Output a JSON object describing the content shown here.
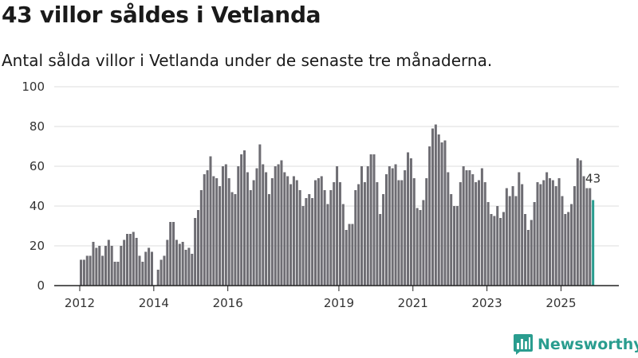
{
  "header": {
    "title": "43 villor såldes i Vetlanda",
    "subtitle": "Antal sålda villor i Vetlanda under de senaste tre månaderna."
  },
  "brand": {
    "name": "Newsworthy"
  },
  "colors": {
    "bar": "#6e6d73",
    "highlight": "#2a9d8f",
    "grid": "#dcdcdc",
    "axis": "#222222"
  },
  "chart_data": {
    "type": "bar",
    "title": "43 villor såldes i Vetlanda",
    "subtitle": "Antal sålda villor i Vetlanda under de senaste tre månaderna.",
    "xlabel": "",
    "ylabel": "",
    "ylim": [
      0,
      100
    ],
    "yticks": [
      0,
      20,
      40,
      60,
      80,
      100
    ],
    "grid": true,
    "start_year": 2012,
    "end_year": 2025,
    "xtick_labels": [
      "2012",
      "2014",
      "2016",
      "2019",
      "2021",
      "2023",
      "2025"
    ],
    "xtick_years": [
      2012,
      2014,
      2016,
      2019,
      2021,
      2023,
      2025
    ],
    "highlight_label": "43",
    "values": [
      13,
      13,
      15,
      15,
      22,
      19,
      20,
      15,
      20,
      23,
      20,
      12,
      12,
      20,
      23,
      26,
      26,
      27,
      24,
      15,
      12,
      17,
      19,
      17,
      null,
      8,
      13,
      15,
      23,
      32,
      32,
      23,
      21,
      22,
      18,
      19,
      16,
      34,
      38,
      48,
      56,
      58,
      65,
      55,
      54,
      50,
      60,
      61,
      54,
      47,
      46,
      60,
      66,
      68,
      57,
      48,
      53,
      59,
      71,
      61,
      57,
      46,
      54,
      60,
      61,
      63,
      57,
      55,
      51,
      55,
      53,
      48,
      40,
      44,
      46,
      44,
      53,
      54,
      55,
      48,
      41,
      48,
      52,
      60,
      52,
      41,
      28,
      31,
      31,
      48,
      51,
      60,
      52,
      60,
      66,
      66,
      52,
      36,
      46,
      56,
      60,
      59,
      61,
      53,
      53,
      58,
      67,
      64,
      54,
      39,
      38,
      43,
      54,
      70,
      79,
      81,
      76,
      72,
      73,
      57,
      46,
      40,
      40,
      52,
      60,
      58,
      58,
      56,
      52,
      53,
      59,
      52,
      42,
      36,
      35,
      40,
      34,
      37,
      49,
      45,
      50,
      45,
      57,
      51,
      36,
      28,
      33,
      42,
      52,
      51,
      53,
      57,
      54,
      53,
      50,
      54,
      45,
      36,
      37,
      41,
      50,
      64,
      63,
      55,
      49,
      49,
      43
    ]
  }
}
